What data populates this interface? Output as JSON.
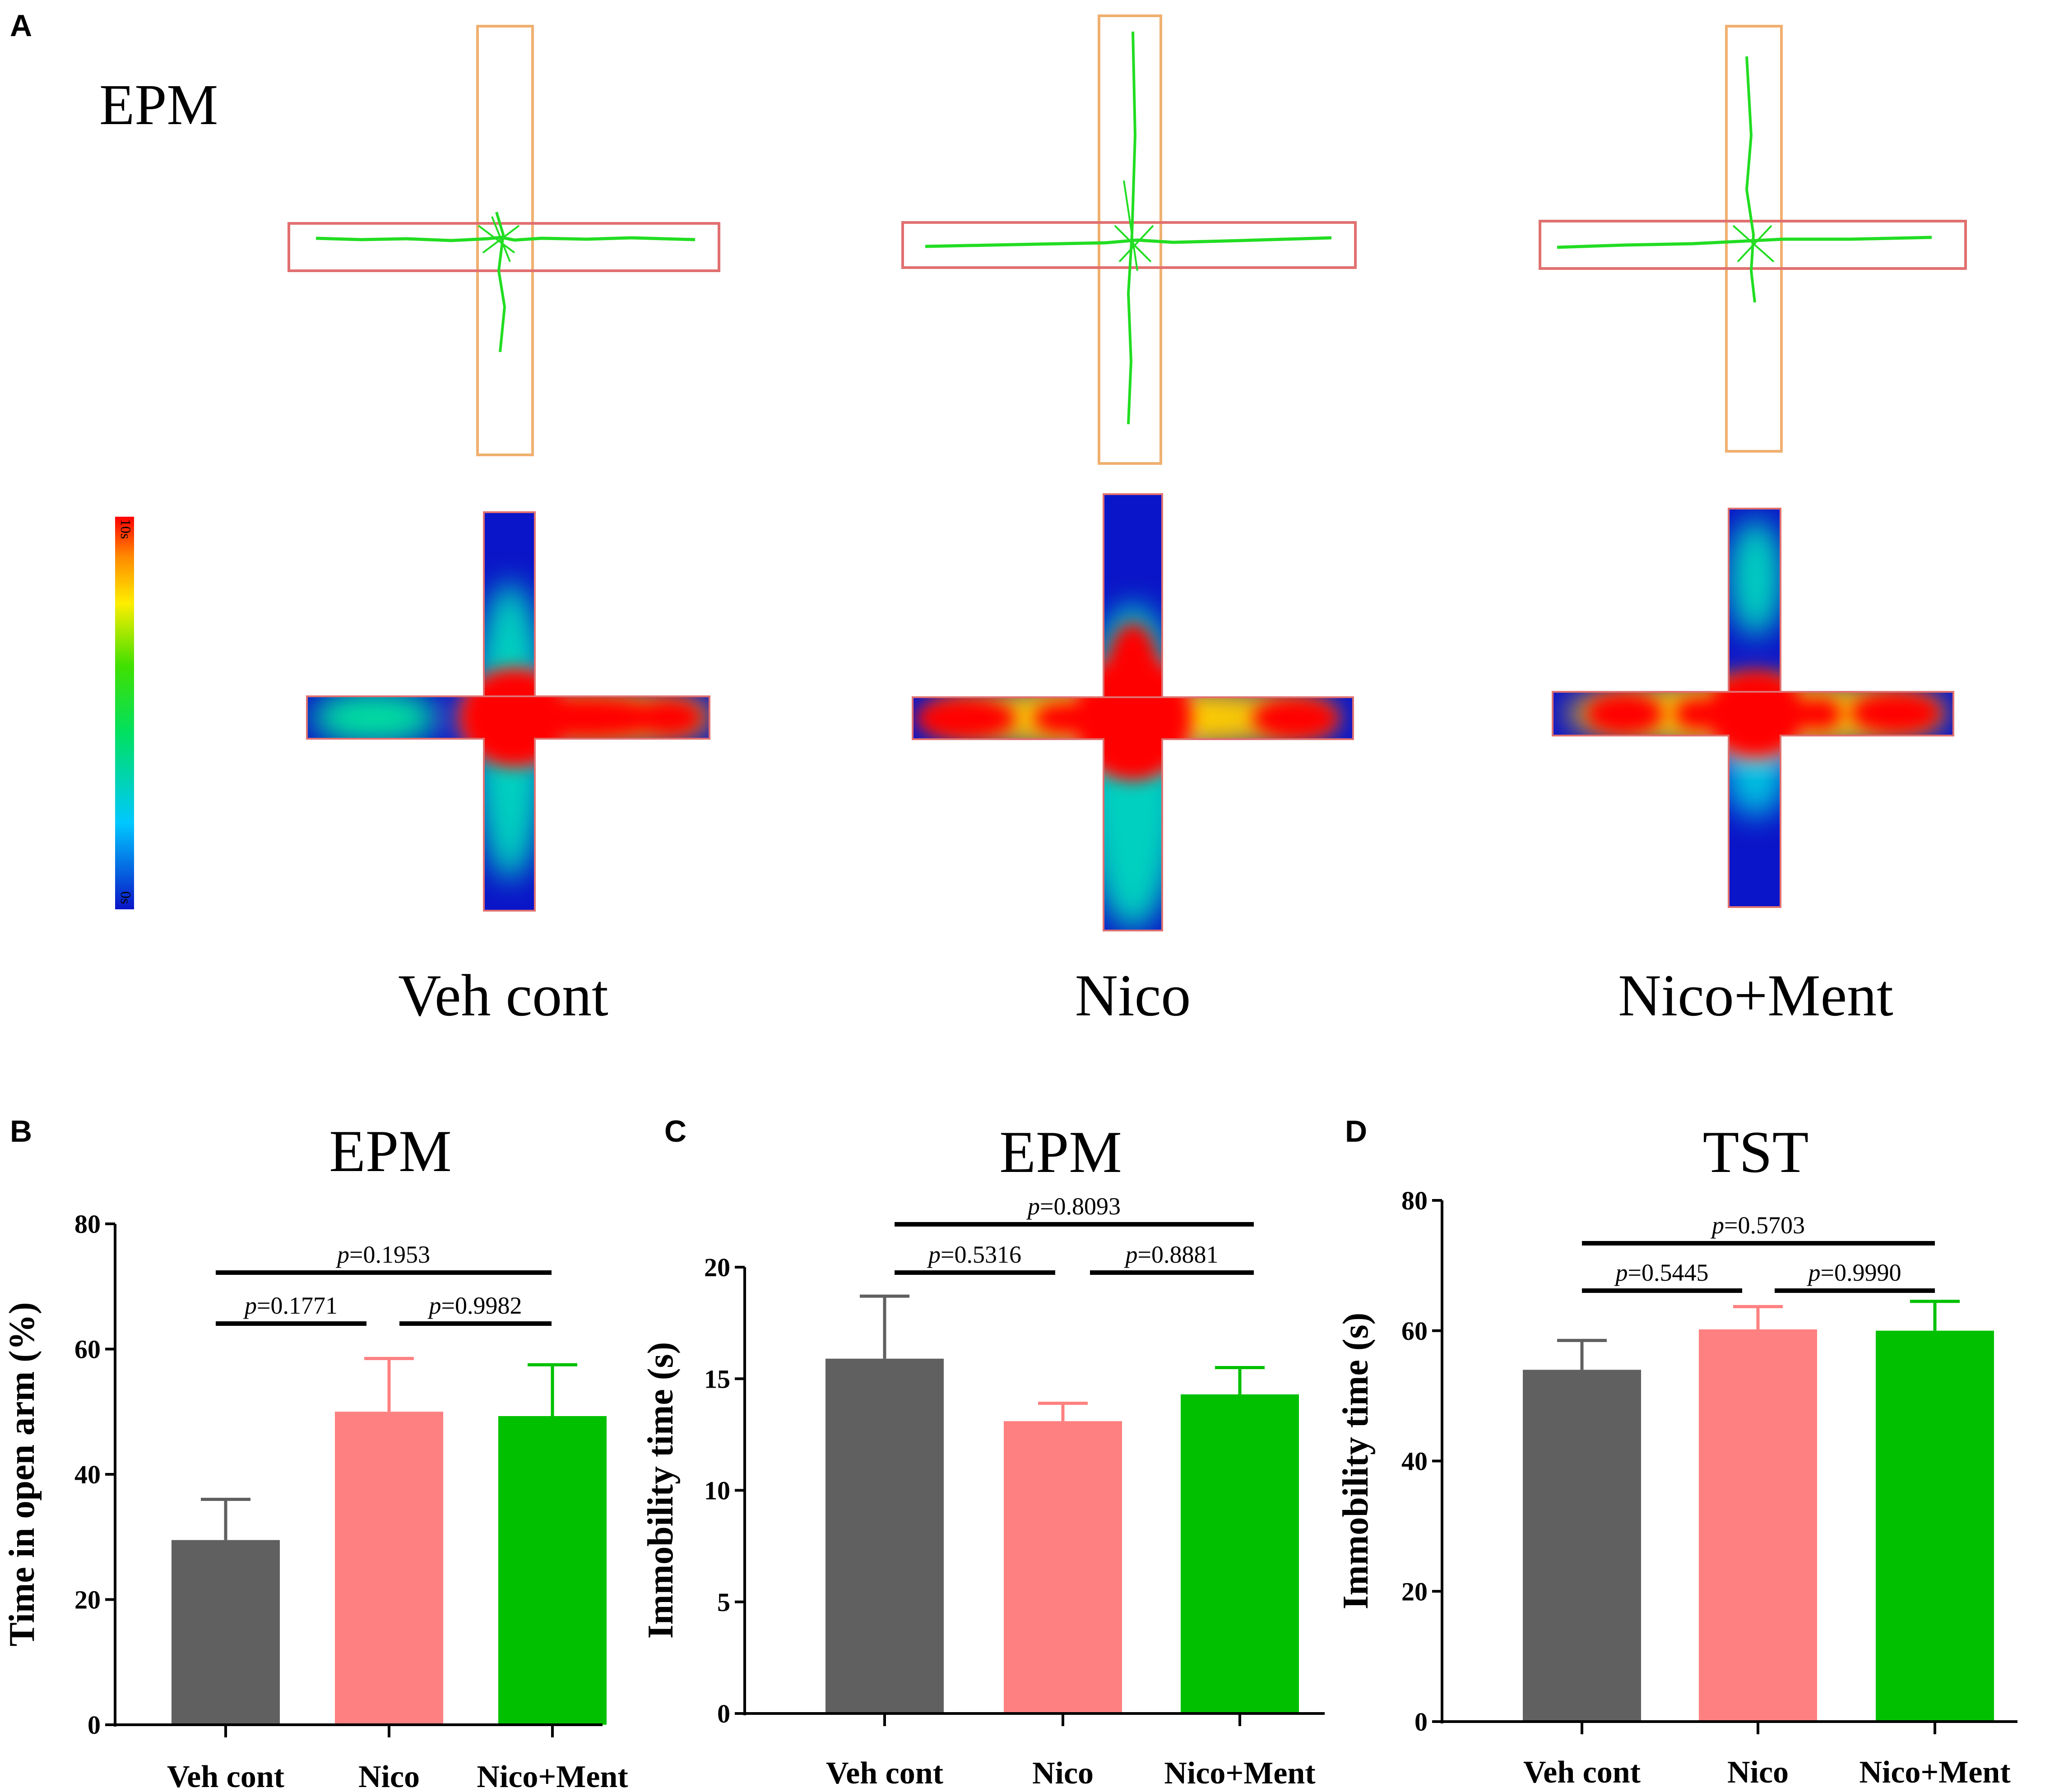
{
  "panel_a": {
    "letter": "A",
    "label": "EPM",
    "colorbar": {
      "max_label": "10s",
      "min_label": "0s"
    },
    "groups": [
      "Veh cont",
      "Nico",
      "Nico+Ment"
    ],
    "colors": {
      "track": "#22dd22",
      "open_arm_box": "#e07070",
      "closed_arm_box": "#f0b070",
      "heat_low": "#0a14c8",
      "heat_high": "#ff0000"
    }
  },
  "chart_data": [
    {
      "panel": "B",
      "type": "bar",
      "title": "EPM",
      "ylabel": "Time in open arm (%)",
      "xlabel": "",
      "categories": [
        "Veh cont",
        "Nico",
        "Nico+Ment"
      ],
      "values": [
        29.5,
        50,
        49.3
      ],
      "errors": [
        6.5,
        8.5,
        8.2
      ],
      "colors": [
        "#606060",
        "#ff8080",
        "#00c000"
      ],
      "ylim": [
        0,
        80
      ],
      "yticks": [
        0,
        20,
        40,
        60,
        80
      ],
      "comparisons": [
        {
          "from": 0,
          "to": 1,
          "label": "p=0.1771",
          "p_prefix": "p",
          "p_value": "=0.1771"
        },
        {
          "from": 1,
          "to": 2,
          "label": "p=0.9982",
          "p_prefix": "p",
          "p_value": "=0.9982"
        },
        {
          "from": 0,
          "to": 2,
          "label": "p=0.1953",
          "p_prefix": "p",
          "p_value": "=0.1953"
        }
      ]
    },
    {
      "panel": "C",
      "type": "bar",
      "title": "EPM",
      "ylabel": "Immobility time (s)",
      "xlabel": "",
      "categories": [
        "Veh cont",
        "Nico",
        "Nico+Ment"
      ],
      "values": [
        15.9,
        13.1,
        14.3
      ],
      "errors": [
        2.8,
        0.8,
        1.2
      ],
      "colors": [
        "#606060",
        "#ff8080",
        "#00c000"
      ],
      "ylim": [
        0,
        20
      ],
      "yticks": [
        0,
        5,
        10,
        15,
        20
      ],
      "comparisons": [
        {
          "from": 0,
          "to": 1,
          "label": "p=0.5316",
          "p_prefix": "p",
          "p_value": "=0.5316"
        },
        {
          "from": 1,
          "to": 2,
          "label": "p=0.8881",
          "p_prefix": "p",
          "p_value": "=0.8881"
        },
        {
          "from": 0,
          "to": 2,
          "label": "p=0.8093",
          "p_prefix": "p",
          "p_value": "=0.8093"
        }
      ]
    },
    {
      "panel": "D",
      "type": "bar",
      "title": "TST",
      "ylabel": "Immobility time (s)",
      "xlabel": "",
      "categories": [
        "Veh cont",
        "Nico",
        "Nico+Ment"
      ],
      "values": [
        54,
        60.2,
        60
      ],
      "errors": [
        4.5,
        3.5,
        4.5
      ],
      "colors": [
        "#606060",
        "#ff8080",
        "#00c000"
      ],
      "ylim": [
        0,
        80
      ],
      "yticks": [
        0,
        20,
        40,
        60,
        80
      ],
      "comparisons": [
        {
          "from": 0,
          "to": 1,
          "label": "p=0.5445",
          "p_prefix": "p",
          "p_value": "=0.5445"
        },
        {
          "from": 1,
          "to": 2,
          "label": "p=0.9990",
          "p_prefix": "p",
          "p_value": "=0.9990"
        },
        {
          "from": 0,
          "to": 2,
          "label": "p=0.5703",
          "p_prefix": "p",
          "p_value": "=0.5703"
        }
      ]
    }
  ]
}
